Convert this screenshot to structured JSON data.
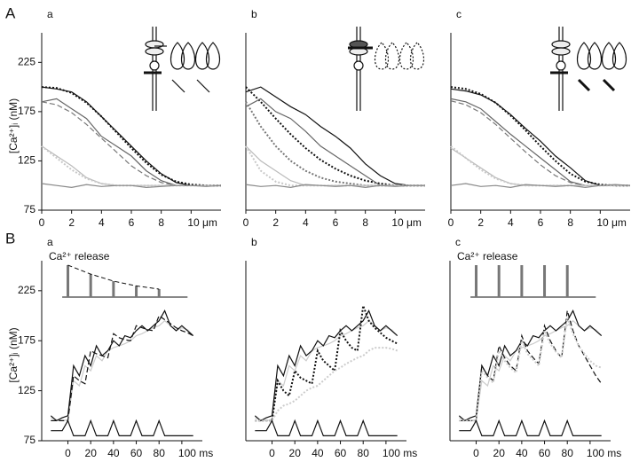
{
  "panel_labels": [
    "A",
    "B"
  ],
  "chart_data": [
    {
      "type": "line",
      "title": "a",
      "ylabel": "[Ca²⁺]ᵢ (nM)",
      "x": [
        0,
        1,
        2,
        3,
        4,
        5,
        6,
        7,
        8,
        9,
        10,
        11,
        12
      ],
      "xlim": [
        0,
        12
      ],
      "xticks": [
        0,
        2,
        4,
        6,
        8,
        {
          "value": 10,
          "label": "10 μm"
        }
      ],
      "ylim": [
        75,
        255
      ],
      "yticks": [
        75,
        125,
        175,
        225
      ],
      "series": [
        {
          "color": "#111111",
          "dash": "solid",
          "values": [
            200,
            198,
            195,
            185,
            170,
            155,
            140,
            125,
            112,
            103,
            100,
            100,
            100
          ]
        },
        {
          "color": "#111111",
          "dash": "dotted",
          "values": [
            200,
            199,
            194,
            184,
            170,
            154,
            138,
            123,
            111,
            104,
            101,
            100,
            100
          ]
        },
        {
          "color": "#666666",
          "dash": "solid",
          "values": [
            185,
            188,
            178,
            168,
            150,
            140,
            130,
            115,
            105,
            100,
            100,
            100,
            100
          ]
        },
        {
          "color": "#777777",
          "dash": "dashed",
          "values": [
            185,
            182,
            174,
            162,
            148,
            134,
            120,
            110,
            103,
            100,
            100,
            100,
            100
          ]
        },
        {
          "color": "#bbbbbb",
          "dash": "solid",
          "values": [
            140,
            130,
            120,
            108,
            102,
            100,
            100,
            100,
            100,
            100,
            100,
            100,
            100
          ]
        },
        {
          "color": "#c8c8c8",
          "dash": "dotted",
          "values": [
            140,
            128,
            116,
            107,
            102,
            100,
            100,
            100,
            100,
            100,
            100,
            100,
            100
          ]
        },
        {
          "color": "#888888",
          "dash": "solid",
          "values": [
            102,
            100,
            98,
            101,
            99,
            100,
            100,
            98,
            99,
            100,
            100,
            99,
            100
          ]
        }
      ]
    },
    {
      "type": "line",
      "title": "b",
      "x": [
        0,
        1,
        2,
        3,
        4,
        5,
        6,
        7,
        8,
        9,
        10,
        11,
        12
      ],
      "xlim": [
        0,
        12
      ],
      "xticks": [
        0,
        2,
        4,
        6,
        8,
        {
          "value": 10,
          "label": "10 μm"
        }
      ],
      "ylim": [
        75,
        255
      ],
      "series": [
        {
          "color": "#111111",
          "dash": "solid",
          "values": [
            195,
            200,
            190,
            180,
            172,
            160,
            150,
            138,
            122,
            110,
            102,
            100,
            100
          ]
        },
        {
          "color": "#111111",
          "dash": "dotted",
          "values": [
            200,
            185,
            168,
            152,
            138,
            126,
            117,
            110,
            105,
            102,
            100,
            100,
            100
          ]
        },
        {
          "color": "#666666",
          "dash": "solid",
          "values": [
            180,
            188,
            175,
            168,
            155,
            140,
            130,
            120,
            110,
            100,
            100,
            100,
            100
          ]
        },
        {
          "color": "#777777",
          "dash": "dotted",
          "values": [
            185,
            160,
            140,
            125,
            115,
            108,
            104,
            102,
            100,
            100,
            100,
            100,
            100
          ]
        },
        {
          "color": "#bbbbbb",
          "dash": "solid",
          "values": [
            140,
            125,
            115,
            105,
            100,
            100,
            100,
            100,
            100,
            100,
            100,
            100,
            100
          ]
        },
        {
          "color": "#c8c8c8",
          "dash": "dotted",
          "values": [
            140,
            115,
            104,
            100,
            100,
            100,
            100,
            100,
            100,
            100,
            100,
            100,
            100
          ]
        },
        {
          "color": "#888888",
          "dash": "solid",
          "values": [
            101,
            99,
            100,
            98,
            101,
            100,
            99,
            100,
            98,
            100,
            99,
            100,
            100
          ]
        }
      ]
    },
    {
      "type": "line",
      "title": "c",
      "x": [
        0,
        1,
        2,
        3,
        4,
        5,
        6,
        7,
        8,
        9,
        10,
        11,
        12
      ],
      "xlim": [
        0,
        12
      ],
      "xticks": [
        0,
        2,
        4,
        6,
        8,
        {
          "value": 10,
          "label": "10 μm"
        }
      ],
      "ylim": [
        75,
        255
      ],
      "series": [
        {
          "color": "#111111",
          "dash": "solid",
          "values": [
            198,
            196,
            192,
            184,
            172,
            158,
            145,
            130,
            118,
            105,
            100,
            100,
            100
          ]
        },
        {
          "color": "#111111",
          "dash": "dotted",
          "values": [
            200,
            198,
            193,
            184,
            171,
            156,
            140,
            125,
            112,
            104,
            101,
            100,
            100
          ]
        },
        {
          "color": "#666666",
          "dash": "solid",
          "values": [
            188,
            185,
            178,
            165,
            152,
            140,
            128,
            116,
            104,
            100,
            100,
            100,
            100
          ]
        },
        {
          "color": "#777777",
          "dash": "dashed",
          "values": [
            186,
            182,
            174,
            162,
            148,
            134,
            121,
            110,
            103,
            100,
            100,
            100,
            100
          ]
        },
        {
          "color": "#bbbbbb",
          "dash": "solid",
          "values": [
            138,
            128,
            118,
            108,
            102,
            100,
            100,
            100,
            100,
            100,
            100,
            100,
            100
          ]
        },
        {
          "color": "#c8c8c8",
          "dash": "dotted",
          "values": [
            140,
            128,
            116,
            107,
            102,
            100,
            100,
            100,
            100,
            100,
            100,
            100,
            100
          ]
        },
        {
          "color": "#888888",
          "dash": "solid",
          "values": [
            100,
            102,
            99,
            100,
            98,
            101,
            100,
            99,
            100,
            98,
            100,
            101,
            100
          ]
        }
      ]
    },
    {
      "type": "line",
      "title": "a",
      "ylabel": "[Ca²⁺]ᵢ (nM)",
      "annotation": "Ca²⁺ release",
      "release": {
        "times": [
          0,
          20,
          40,
          60,
          80
        ],
        "amplitudes": [
          1,
          0.72,
          0.5,
          0.35,
          0.25
        ]
      },
      "x": [
        -15,
        -10,
        -5,
        0,
        5,
        10,
        15,
        20,
        25,
        30,
        35,
        40,
        45,
        50,
        55,
        60,
        65,
        70,
        75,
        80,
        85,
        90,
        95,
        100,
        105,
        110
      ],
      "xlim": [
        -23,
        118
      ],
      "xticks": [
        0,
        20,
        40,
        60,
        80,
        {
          "value": 100,
          "label": "100 ms"
        }
      ],
      "ylim": [
        75,
        255
      ],
      "yticks": [
        75,
        125,
        175,
        225
      ],
      "series": [
        {
          "color": "#cccccc",
          "dash": "solid",
          "values": [
            98,
            96,
            95,
            96,
            135,
            130,
            150,
            145,
            160,
            155,
            165,
            168,
            170,
            172,
            175,
            180,
            182,
            185,
            188,
            190,
            195,
            190,
            185,
            188,
            186,
            180
          ]
        },
        {
          "color": "#111111",
          "dash": "solid",
          "values": [
            100,
            95,
            98,
            100,
            150,
            140,
            160,
            150,
            170,
            160,
            165,
            175,
            170,
            180,
            178,
            185,
            190,
            185,
            190,
            195,
            205,
            190,
            185,
            190,
            185,
            180
          ]
        },
        {
          "color": "#111111",
          "dash": "dashed",
          "values": [
            95,
            95,
            95,
            95,
            140,
            135,
            132,
            165,
            162,
            160,
            158,
            182,
            178,
            176,
            175,
            190,
            188,
            186,
            185,
            200,
            196,
            192,
            188,
            185,
            183,
            180
          ]
        },
        {
          "color": "#111111",
          "dash": "solid",
          "values": [
            85,
            85,
            85,
            95,
            80,
            80,
            80,
            95,
            80,
            80,
            80,
            95,
            80,
            80,
            80,
            95,
            80,
            80,
            80,
            95,
            80,
            80,
            80,
            80,
            80,
            80
          ]
        }
      ]
    },
    {
      "type": "line",
      "title": "b",
      "x": [
        -15,
        -10,
        -5,
        0,
        5,
        10,
        15,
        20,
        25,
        30,
        35,
        40,
        45,
        50,
        55,
        60,
        65,
        70,
        75,
        80,
        85,
        90,
        95,
        100,
        105,
        110
      ],
      "xlim": [
        -23,
        118
      ],
      "xticks": [
        0,
        20,
        40,
        60,
        80,
        {
          "value": 100,
          "label": "100 ms"
        }
      ],
      "ylim": [
        75,
        255
      ],
      "series": [
        {
          "color": "#cccccc",
          "dash": "solid",
          "values": [
            98,
            96,
            95,
            96,
            135,
            130,
            150,
            145,
            160,
            155,
            165,
            168,
            170,
            172,
            175,
            180,
            182,
            185,
            188,
            190,
            195,
            190,
            185,
            188,
            186,
            180
          ]
        },
        {
          "color": "#111111",
          "dash": "solid",
          "values": [
            100,
            95,
            98,
            100,
            150,
            140,
            160,
            150,
            170,
            160,
            165,
            175,
            170,
            180,
            178,
            185,
            190,
            185,
            190,
            195,
            205,
            190,
            185,
            190,
            185,
            180
          ]
        },
        {
          "color": "#111111",
          "dash": "dotted",
          "values": [
            95,
            95,
            95,
            95,
            135,
            125,
            120,
            145,
            138,
            135,
            132,
            165,
            155,
            150,
            145,
            185,
            175,
            168,
            165,
            210,
            195,
            188,
            183,
            178,
            175,
            172
          ]
        },
        {
          "color": "#cccccc",
          "dash": "dotted",
          "values": [
            95,
            95,
            95,
            95,
            105,
            110,
            112,
            115,
            120,
            125,
            128,
            130,
            135,
            140,
            145,
            148,
            152,
            155,
            158,
            160,
            165,
            168,
            168,
            168,
            167,
            165
          ]
        },
        {
          "color": "#111111",
          "dash": "solid",
          "values": [
            85,
            85,
            85,
            95,
            80,
            80,
            80,
            95,
            80,
            80,
            80,
            95,
            80,
            80,
            80,
            95,
            80,
            80,
            80,
            95,
            80,
            80,
            80,
            80,
            80,
            80
          ]
        }
      ]
    },
    {
      "type": "line",
      "title": "c",
      "annotation": "Ca²⁺ release",
      "release": {
        "times": [
          0,
          20,
          40,
          60,
          80
        ],
        "amplitudes": [
          1,
          1,
          1,
          1,
          1
        ]
      },
      "x": [
        -15,
        -10,
        -5,
        0,
        5,
        10,
        15,
        20,
        25,
        30,
        35,
        40,
        45,
        50,
        55,
        60,
        65,
        70,
        75,
        80,
        85,
        90,
        95,
        100,
        105,
        110
      ],
      "xlim": [
        -23,
        118
      ],
      "xticks": [
        0,
        20,
        40,
        60,
        80,
        {
          "value": 100,
          "label": "100 ms"
        }
      ],
      "ylim": [
        75,
        255
      ],
      "series": [
        {
          "color": "#cccccc",
          "dash": "solid",
          "values": [
            98,
            96,
            95,
            96,
            135,
            130,
            150,
            145,
            160,
            155,
            165,
            168,
            170,
            172,
            175,
            180,
            182,
            185,
            188,
            190,
            195,
            190,
            185,
            188,
            186,
            180
          ]
        },
        {
          "color": "#111111",
          "dash": "solid",
          "values": [
            100,
            95,
            98,
            100,
            150,
            140,
            160,
            150,
            170,
            160,
            165,
            175,
            170,
            180,
            178,
            185,
            190,
            185,
            190,
            195,
            205,
            190,
            185,
            190,
            185,
            180
          ]
        },
        {
          "color": "#111111",
          "dash": "dashed",
          "values": [
            95,
            95,
            95,
            95,
            150,
            140,
            135,
            170,
            158,
            150,
            145,
            180,
            165,
            158,
            152,
            190,
            175,
            165,
            158,
            205,
            185,
            170,
            160,
            150,
            140,
            132
          ]
        },
        {
          "color": "#cccccc",
          "dash": "dotted",
          "values": [
            95,
            95,
            95,
            95,
            145,
            138,
            133,
            165,
            155,
            148,
            143,
            175,
            162,
            156,
            150,
            185,
            172,
            164,
            158,
            198,
            182,
            170,
            162,
            155,
            150,
            148
          ]
        },
        {
          "color": "#111111",
          "dash": "solid",
          "values": [
            85,
            85,
            85,
            95,
            80,
            80,
            80,
            95,
            80,
            80,
            80,
            95,
            80,
            80,
            80,
            95,
            80,
            80,
            80,
            95,
            80,
            80,
            80,
            80,
            80,
            80
          ]
        }
      ]
    }
  ]
}
